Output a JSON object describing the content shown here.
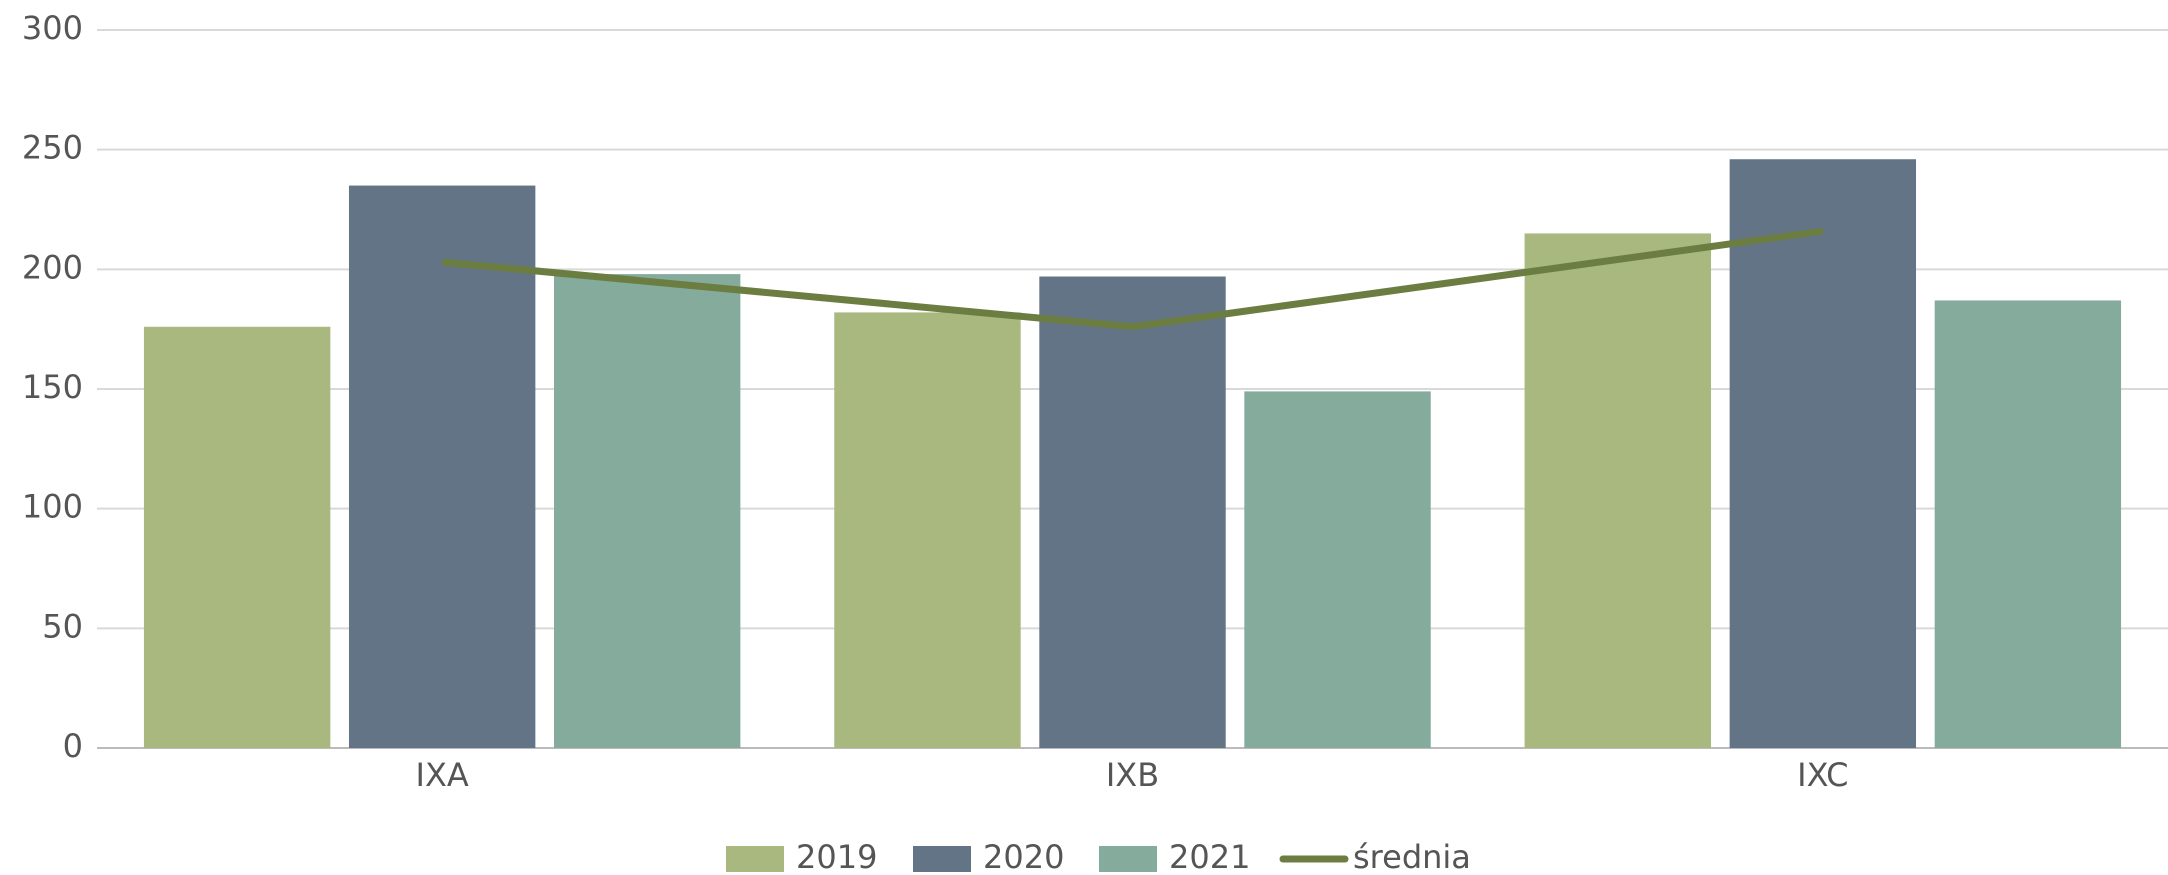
{
  "chart_data": {
    "type": "bar",
    "categories": [
      "IXA",
      "IXB",
      "IXC"
    ],
    "series": [
      {
        "name": "2019",
        "color": "#a8b87f",
        "values": [
          176,
          182,
          215
        ]
      },
      {
        "name": "2020",
        "color": "#637486",
        "values": [
          235,
          197,
          246
        ]
      },
      {
        "name": "2021",
        "color": "#84ab9b",
        "values": [
          198,
          149,
          187
        ]
      },
      {
        "name": "średnia",
        "type": "line",
        "color": "#6b7d41",
        "values": [
          203,
          176,
          216
        ]
      }
    ],
    "ylim": [
      0,
      300
    ],
    "yticks": [
      0,
      50,
      100,
      150,
      200,
      250,
      300
    ],
    "grid": true,
    "legend": "bottom"
  }
}
